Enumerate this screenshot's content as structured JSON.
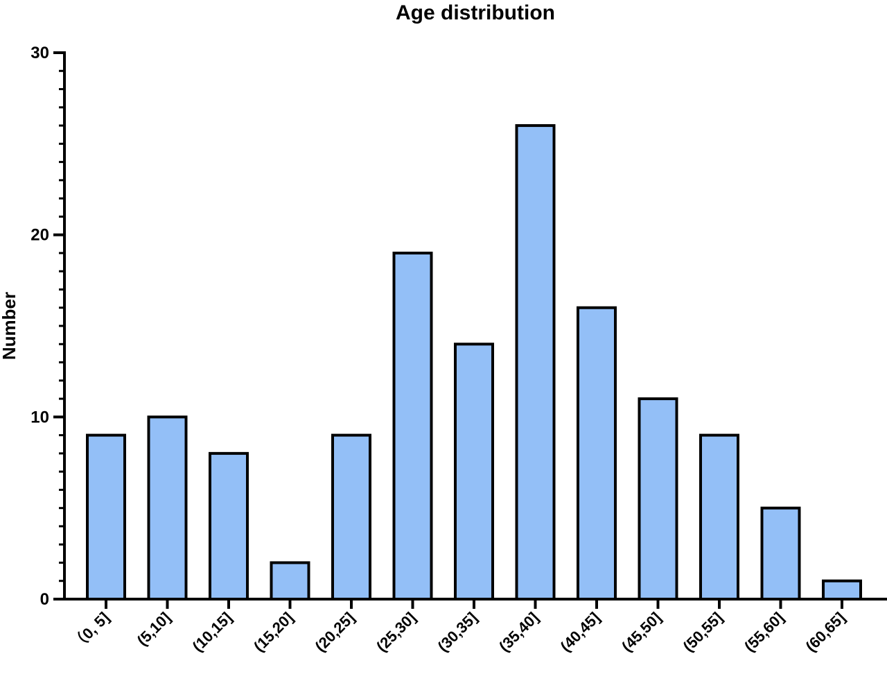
{
  "chart_data": {
    "type": "bar",
    "title": "Age distribution",
    "xlabel": "",
    "ylabel": "Number",
    "ylim": [
      0,
      30
    ],
    "y_major_ticks": [
      0,
      10,
      20,
      30
    ],
    "y_minor_step": 1,
    "categories": [
      "（0, 5]",
      "(5,10]",
      "(10,15]",
      "(15,20]",
      "(20,25]",
      "(25,30]",
      "(30,35]",
      "(35,40]",
      "(40,45]",
      "(45,50]",
      "(50,55]",
      "(55,60]",
      "(60,65]"
    ],
    "values": [
      9,
      10,
      8,
      2,
      9,
      19,
      14,
      26,
      16,
      11,
      9,
      5,
      1
    ],
    "bar_color": "#93bff7",
    "bar_edge_color": "#000000",
    "grid": false,
    "legend": "none"
  }
}
